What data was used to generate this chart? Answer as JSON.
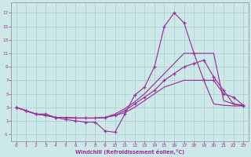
{
  "bg_color": "#cde8e8",
  "line_color": "#993399",
  "grid_color": "#aacccc",
  "xlabel": "Windchill (Refroidissement éolien,°C)",
  "xlim": [
    -0.5,
    23.5
  ],
  "ylim": [
    -2,
    18.5
  ],
  "xticks": [
    0,
    1,
    2,
    3,
    4,
    5,
    6,
    7,
    8,
    9,
    10,
    11,
    12,
    13,
    14,
    15,
    16,
    17,
    18,
    19,
    20,
    21,
    22,
    23
  ],
  "yticks": [
    -1,
    1,
    3,
    5,
    7,
    9,
    11,
    13,
    15,
    17
  ],
  "curve1_x": [
    0,
    1,
    2,
    3,
    4,
    5,
    6,
    7,
    8,
    9,
    10,
    11,
    12,
    13,
    14,
    15,
    16,
    17,
    18,
    19,
    20,
    21,
    22,
    23
  ],
  "curve1_y": [
    3,
    2.5,
    2,
    2,
    1.5,
    1.2,
    1.0,
    0.8,
    0.8,
    -0.5,
    -0.7,
    2,
    4.8,
    6,
    9,
    15,
    17,
    15.5,
    11,
    7,
    7,
    5,
    4.5,
    3.3
  ],
  "curve2_x": [
    0,
    1,
    2,
    3,
    4,
    5,
    6,
    7,
    8,
    9,
    10,
    11,
    12,
    13,
    14,
    15,
    16,
    17,
    18,
    19,
    20,
    21,
    22,
    23
  ],
  "curve2_y": [
    3,
    2.5,
    2,
    1.8,
    1.5,
    1.5,
    1.4,
    1.4,
    1.4,
    1.5,
    2.0,
    2.8,
    3.8,
    5,
    6.5,
    8,
    9.5,
    11,
    11,
    11,
    11,
    4,
    3.5,
    3.3
  ],
  "curve3_x": [
    0,
    1,
    2,
    3,
    4,
    5,
    6,
    7,
    8,
    9,
    10,
    11,
    12,
    13,
    14,
    15,
    16,
    17,
    18,
    19,
    20,
    21,
    22,
    23
  ],
  "curve3_y": [
    3,
    2.5,
    2,
    1.8,
    1.5,
    1.5,
    1.4,
    1.4,
    1.4,
    1.5,
    1.8,
    2.5,
    3.5,
    4.5,
    5.5,
    7,
    8,
    9,
    9.5,
    10,
    7.5,
    5.5,
    3.5,
    3.2
  ],
  "curve4_x": [
    0,
    1,
    2,
    3,
    4,
    5,
    6,
    7,
    8,
    9,
    10,
    11,
    12,
    13,
    14,
    15,
    16,
    17,
    18,
    19,
    20,
    21,
    22,
    23
  ],
  "curve4_y": [
    3,
    2.5,
    2,
    1.8,
    1.5,
    1.5,
    1.4,
    1.4,
    1.4,
    1.5,
    1.8,
    2.2,
    3,
    4,
    5,
    6,
    6.5,
    7,
    7,
    7,
    3.5,
    3.3,
    3.2,
    3.2
  ],
  "markers_on": [
    1,
    3
  ]
}
